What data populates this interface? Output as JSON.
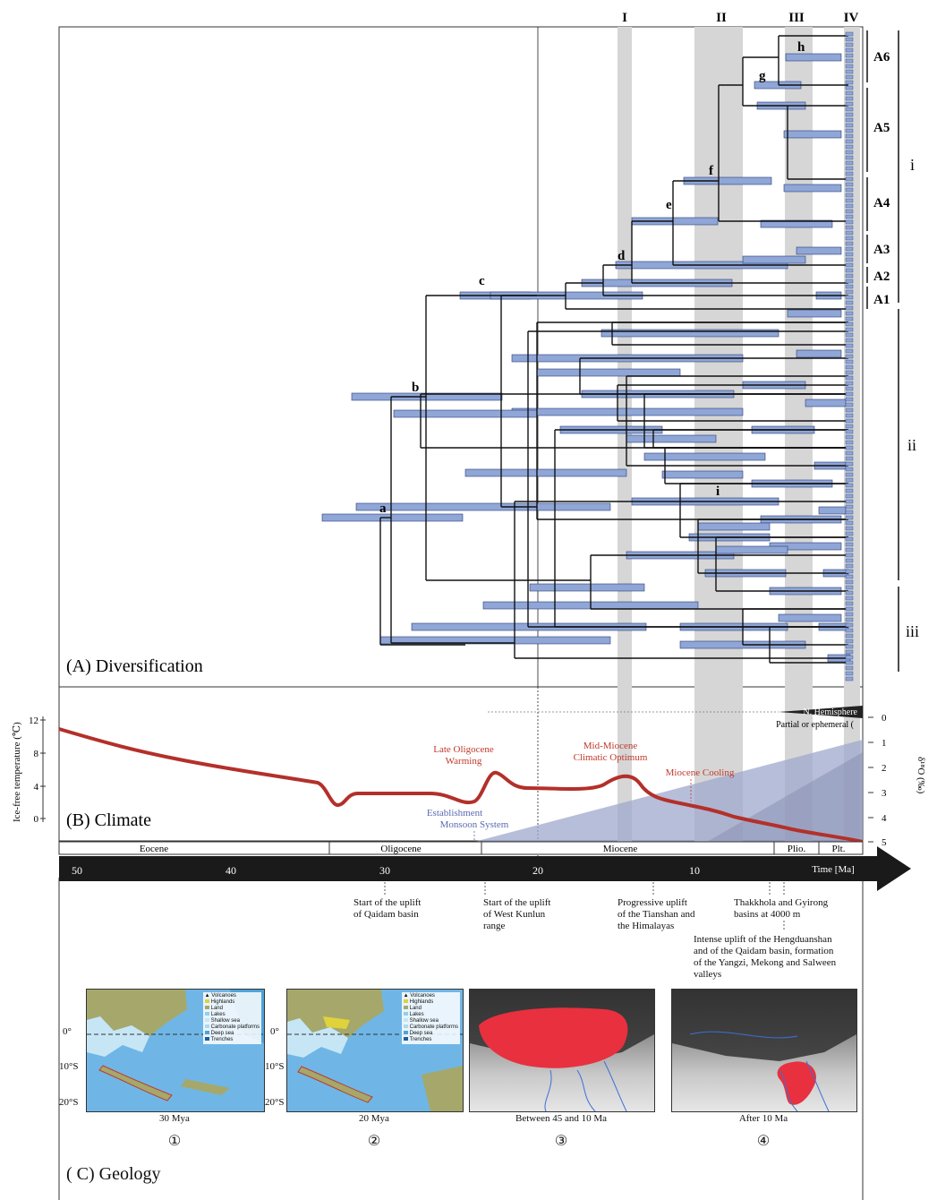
{
  "panels": {
    "a": "(A) Diversification",
    "b": "(B) Climate",
    "c": "( C) Geology"
  },
  "bands": [
    "I",
    "II",
    "III",
    "IV"
  ],
  "clades": [
    "A6",
    "A5",
    "A4",
    "A3",
    "A2",
    "A1"
  ],
  "groups": [
    "i",
    "ii",
    "iii"
  ],
  "nodes": [
    "a",
    "b",
    "c",
    "d",
    "e",
    "f",
    "g",
    "h",
    "i"
  ],
  "climate": {
    "ylabel": "Ice-free temperature (℃)",
    "y2label": "δ¹⁸O (‰)",
    "yticks": [
      "12",
      "8",
      "4",
      "0"
    ],
    "y2ticks": [
      "0",
      "1",
      "2",
      "3",
      "4",
      "5"
    ],
    "ice_top": "N. Hemisphere",
    "ice_note": "Partial or ephemeral (",
    "events": {
      "late_oligocene": [
        "Late Oligocene",
        "Warming"
      ],
      "mid_miocene": [
        "Mid-Miocene",
        "Climatic Optimum"
      ],
      "miocene_cooling": "Miocene Cooling",
      "monsoon": [
        "Establishment",
        "Monsoon System"
      ]
    },
    "curve_color": "#b3302a"
  },
  "timescale": {
    "epochs": [
      "Eocene",
      "Oligocene",
      "Miocene",
      "Plio.",
      "Plt."
    ],
    "ticks": [
      "50",
      "40",
      "30",
      "20",
      "10"
    ],
    "unit": "Time [Ma]"
  },
  "geology_events": {
    "qaidam": [
      "Start of the uplift",
      "of Qaidam basin"
    ],
    "kunlun": [
      "Start of the uplift",
      "of West Kunlun",
      "range"
    ],
    "tianshan": [
      "Progressive uplift",
      "of the Tianshan and",
      "the Himalayas"
    ],
    "thakkhola": [
      "Thakkhola and Gyirong",
      "basins at 4000 m"
    ],
    "hengduan": [
      "Intense uplift of the Hengduanshan",
      "and of the Qaidam basin, formation",
      "of the Yangzi, Mekong and Salween",
      "valleys"
    ]
  },
  "maps": [
    {
      "caption": "30 Mya",
      "num": "①"
    },
    {
      "caption": "20 Mya",
      "num": "②"
    },
    {
      "caption": "Between 45 and 10 Ma",
      "num": "③"
    },
    {
      "caption": "After 10 Ma",
      "num": "④"
    }
  ],
  "map_axis": [
    "0°",
    "10°S",
    "20°S"
  ],
  "map_legend": [
    "Volcanoes",
    "Highlands",
    "Land",
    "Lakes",
    "Shallow sea",
    "Carbonate platforms",
    "Deep sea",
    "Trenches"
  ]
}
